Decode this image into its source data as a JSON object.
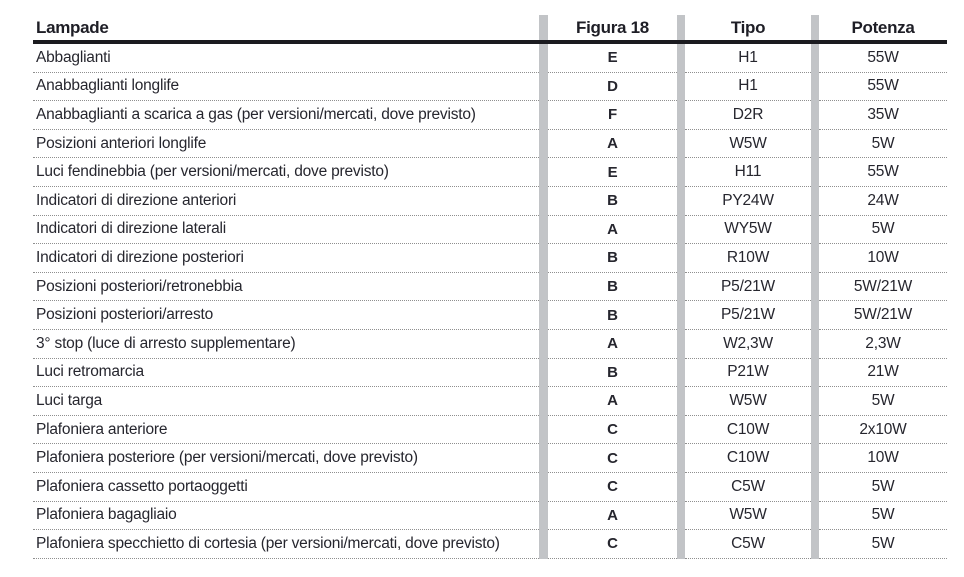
{
  "table": {
    "headers": {
      "lampade": "Lampade",
      "figura": "Figura 18",
      "tipo": "Tipo",
      "potenza": "Potenza"
    },
    "rows": [
      {
        "lampade": "Abbaglianti",
        "figura": "E",
        "tipo": "H1",
        "potenza": "55W"
      },
      {
        "lampade": "Anabbaglianti longlife",
        "figura": "D",
        "tipo": "H1",
        "potenza": "55W"
      },
      {
        "lampade": "Anabbaglianti a scarica a gas (per versioni/mercati, dove previsto)",
        "figura": "F",
        "tipo": "D2R",
        "potenza": "35W"
      },
      {
        "lampade": "Posizioni anteriori longlife",
        "figura": "A",
        "tipo": "W5W",
        "potenza": "5W"
      },
      {
        "lampade": "Luci fendinebbia (per versioni/mercati, dove previsto)",
        "figura": "E",
        "tipo": "H11",
        "potenza": "55W"
      },
      {
        "lampade": "Indicatori di direzione anteriori",
        "figura": "B",
        "tipo": "PY24W",
        "potenza": "24W"
      },
      {
        "lampade": "Indicatori di direzione laterali",
        "figura": "A",
        "tipo": "WY5W",
        "potenza": "5W"
      },
      {
        "lampade": "Indicatori di direzione posteriori",
        "figura": "B",
        "tipo": "R10W",
        "potenza": "10W"
      },
      {
        "lampade": "Posizioni posteriori/retronebbia",
        "figura": "B",
        "tipo": "P5/21W",
        "potenza": "5W/21W"
      },
      {
        "lampade": "Posizioni posteriori/arresto",
        "figura": "B",
        "tipo": "P5/21W",
        "potenza": "5W/21W"
      },
      {
        "lampade": "3° stop (luce di arresto supplementare)",
        "figura": "A",
        "tipo": "W2,3W",
        "potenza": "2,3W"
      },
      {
        "lampade": "Luci retromarcia",
        "figura": "B",
        "tipo": "P21W",
        "potenza": "21W"
      },
      {
        "lampade": "Luci targa",
        "figura": "A",
        "tipo": "W5W",
        "potenza": "5W"
      },
      {
        "lampade": "Plafoniera anteriore",
        "figura": "C",
        "tipo": "C10W",
        "potenza": "2x10W"
      },
      {
        "lampade": "Plafoniera posteriore (per versioni/mercati, dove previsto)",
        "figura": "C",
        "tipo": "C10W",
        "potenza": "10W"
      },
      {
        "lampade": "Plafoniera cassetto portaoggetti",
        "figura": "C",
        "tipo": "C5W",
        "potenza": "5W"
      },
      {
        "lampade": "Plafoniera bagagliaio",
        "figura": "A",
        "tipo": "W5W",
        "potenza": "5W"
      },
      {
        "lampade": "Plafoniera specchietto di cortesia (per versioni/mercati, dove previsto)",
        "figura": "C",
        "tipo": "C5W",
        "potenza": "5W"
      }
    ]
  },
  "colors": {
    "text": "#26262e",
    "separator_bar": "#c2c4c7",
    "dotted_line": "#8f8f8f",
    "header_rule": "#1b1b20"
  }
}
